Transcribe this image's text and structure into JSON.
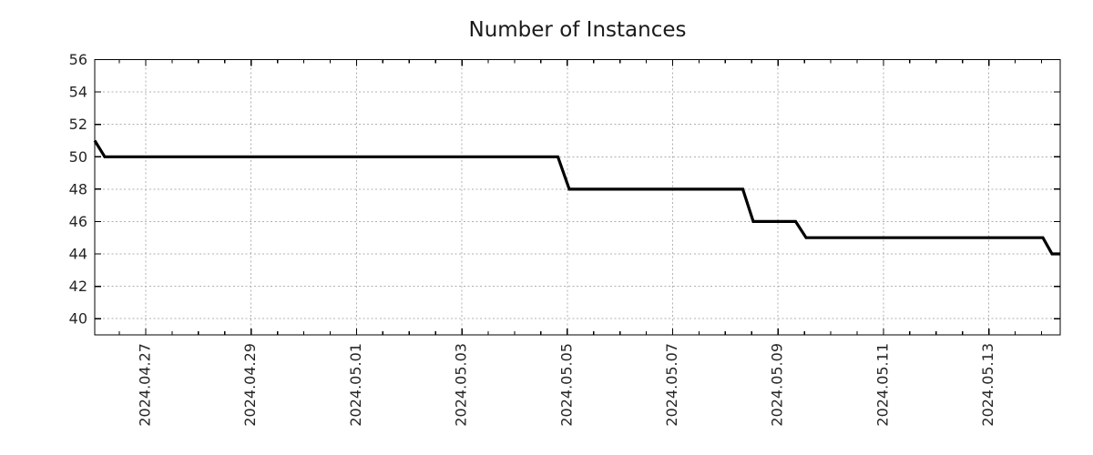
{
  "page": {
    "background": "#ffffff"
  },
  "chart_data": {
    "type": "line",
    "title": "Number of Instances",
    "x_axis": {
      "day_zero_label": "2024.04.27",
      "range_days": [
        -0.968,
        17.355
      ],
      "tick_positions_days": [
        0,
        2,
        4,
        6,
        8,
        10,
        12,
        14,
        16
      ],
      "tick_labels": [
        "2024.04.27",
        "2024.04.29",
        "2024.05.01",
        "2024.05.03",
        "2024.05.05",
        "2024.05.07",
        "2024.05.09",
        "2024.05.11",
        "2024.05.13"
      ],
      "minor_tick_step_days": 0.5
    },
    "y_axis": {
      "range": [
        39,
        56
      ],
      "tick_values": [
        40,
        42,
        44,
        46,
        48,
        50,
        52,
        54,
        56
      ],
      "tick_labels": [
        "40",
        "42",
        "44",
        "46",
        "48",
        "50",
        "52",
        "54",
        "56"
      ]
    },
    "series": [
      {
        "name": "instances",
        "color": "#000000",
        "points_days_value": [
          [
            -0.968,
            51
          ],
          [
            -0.778,
            50
          ],
          [
            7.822,
            50
          ],
          [
            8.038,
            48
          ],
          [
            11.331,
            48
          ],
          [
            11.53,
            46
          ],
          [
            12.334,
            46
          ],
          [
            12.532,
            45
          ],
          [
            17.027,
            45
          ],
          [
            17.2,
            44
          ],
          [
            17.355,
            44
          ]
        ]
      }
    ],
    "step_levels": [
      51,
      50,
      48,
      46,
      45,
      44
    ],
    "grid": {
      "show": true,
      "color": "#b0b0b0",
      "style": "dotted"
    },
    "legend": {
      "show": false
    },
    "colors": {
      "axis": "#000000",
      "text": "#262626",
      "background": "#ffffff"
    }
  }
}
